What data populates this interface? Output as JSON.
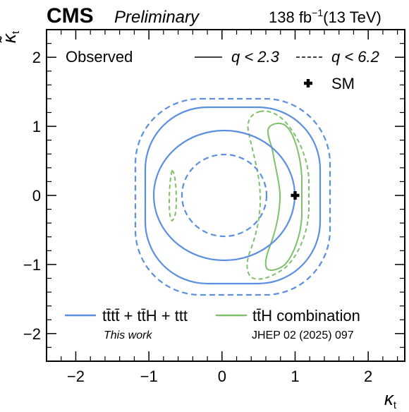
{
  "header": {
    "experiment": "CMS",
    "status": "Preliminary",
    "lumi": "138 fb",
    "lumi_exp": "−1",
    "energy": "(13 TeV)"
  },
  "chart_data": {
    "type": "contour",
    "xlabel": "κ",
    "xlabel_sub": "t",
    "ylabel": "κ̃",
    "ylabel_sub": "t",
    "xlim": [
      -2.4,
      2.5
    ],
    "ylim": [
      -2.4,
      2.4
    ],
    "x_ticks": [
      -2,
      -1,
      0,
      1,
      2
    ],
    "x_tick_labels": [
      "−2",
      "−1",
      "0",
      "1",
      "2"
    ],
    "y_ticks": [
      -2,
      -1,
      0,
      1,
      2
    ],
    "y_tick_labels": [
      "−2",
      "−1",
      "0",
      "1",
      "2"
    ],
    "observed_label": "Observed",
    "linestyle_legend": [
      {
        "style": "solid",
        "label": "q < 2.3"
      },
      {
        "style": "dashed",
        "label": "q < 6.2"
      }
    ],
    "sm": {
      "label": "SM",
      "x": 1.0,
      "y": 0.0
    },
    "series": [
      {
        "name": "tt̄tt̄ + tt̄H + ttt",
        "note": "This work",
        "color": "#5b8fdf"
      },
      {
        "name": "tt̄H combination",
        "note": "JHEP 02 (2025) 097",
        "color": "#7dc16a"
      }
    ]
  }
}
